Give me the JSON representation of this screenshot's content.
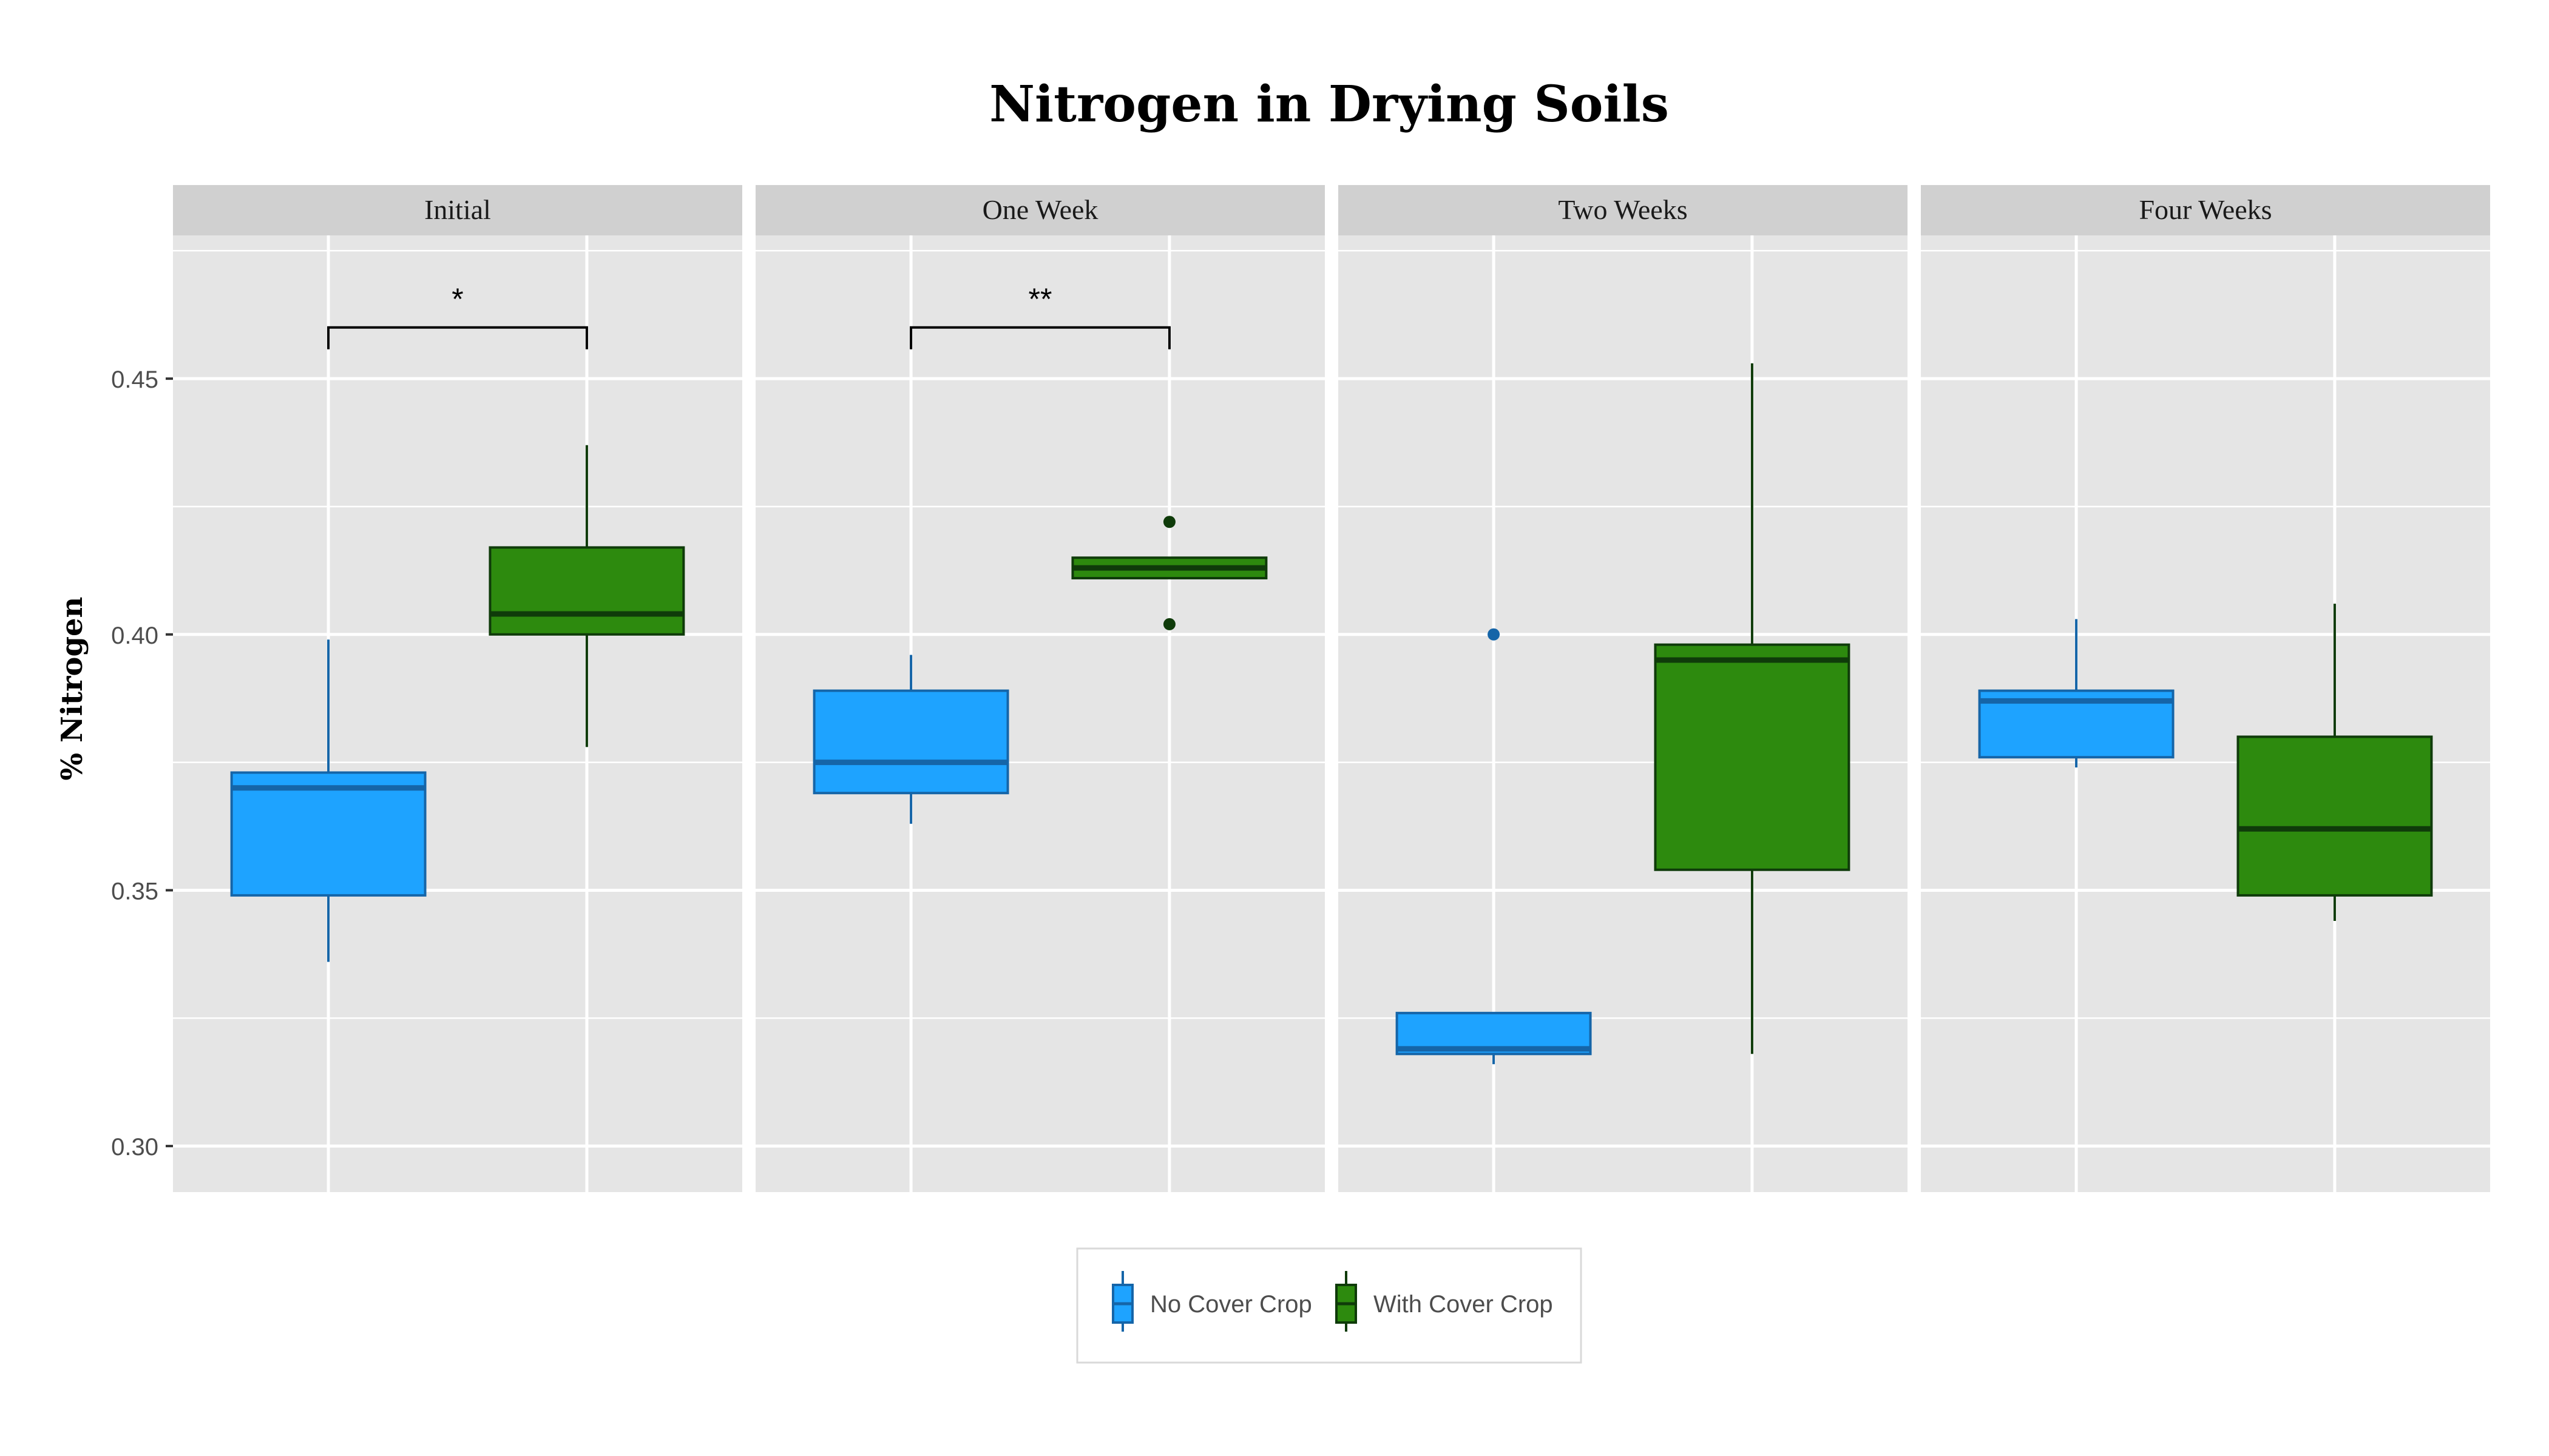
{
  "chart_data": {
    "type": "boxplot",
    "title": "Nitrogen in Drying Soils",
    "ylabel": "% Nitrogen",
    "xlabel": "",
    "ylim": [
      0.291,
      0.478
    ],
    "yticks": [
      0.3,
      0.35,
      0.4,
      0.45
    ],
    "ytick_labels": [
      "0.30",
      "0.35",
      "0.40",
      "0.45"
    ],
    "grid": true,
    "legend_position": "bottom",
    "colors": {
      "no_cover_fill": "#1ea3ff",
      "no_cover_line": "#1565a8",
      "with_cover_fill": "#2d8a0e",
      "with_cover_line": "#0f3b0a",
      "panel_bg": "#e5e5e5",
      "strip_bg": "#d0d0d0",
      "grid": "#ffffff"
    },
    "series": [
      {
        "name": "No Cover Crop",
        "key": "no_cover"
      },
      {
        "name": "With Cover Crop",
        "key": "with_cover"
      }
    ],
    "panels": [
      {
        "label": "Initial",
        "boxes": [
          {
            "series": "No Cover Crop",
            "min": 0.336,
            "q1": 0.349,
            "median": 0.37,
            "q3": 0.373,
            "max": 0.399,
            "outliers": []
          },
          {
            "series": "With Cover Crop",
            "min": 0.378,
            "q1": 0.4,
            "median": 0.404,
            "q3": 0.417,
            "max": 0.437,
            "outliers": []
          }
        ],
        "significance": {
          "label": "*",
          "y": 0.46
        }
      },
      {
        "label": "One Week",
        "boxes": [
          {
            "series": "No Cover Crop",
            "min": 0.363,
            "q1": 0.369,
            "median": 0.375,
            "q3": 0.389,
            "max": 0.396,
            "outliers": []
          },
          {
            "series": "With Cover Crop",
            "min": 0.411,
            "q1": 0.411,
            "median": 0.413,
            "q3": 0.415,
            "max": 0.415,
            "outliers": [
              0.402,
              0.422
            ]
          }
        ],
        "significance": {
          "label": "**",
          "y": 0.46
        }
      },
      {
        "label": "Two Weeks",
        "boxes": [
          {
            "series": "No Cover Crop",
            "min": 0.316,
            "q1": 0.318,
            "median": 0.319,
            "q3": 0.326,
            "max": 0.326,
            "outliers": [
              0.4
            ]
          },
          {
            "series": "With Cover Crop",
            "min": 0.318,
            "q1": 0.354,
            "median": 0.395,
            "q3": 0.398,
            "max": 0.453,
            "outliers": []
          }
        ],
        "significance": null
      },
      {
        "label": "Four Weeks",
        "boxes": [
          {
            "series": "No Cover Crop",
            "min": 0.374,
            "q1": 0.376,
            "median": 0.387,
            "q3": 0.389,
            "max": 0.403,
            "outliers": []
          },
          {
            "series": "With Cover Crop",
            "min": 0.344,
            "q1": 0.349,
            "median": 0.362,
            "q3": 0.38,
            "max": 0.406,
            "outliers": []
          }
        ],
        "significance": null
      }
    ]
  }
}
